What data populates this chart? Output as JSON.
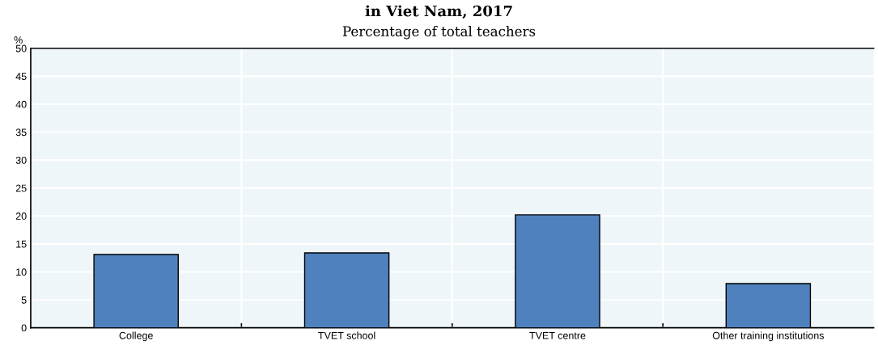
{
  "chart_data": {
    "type": "bar",
    "title": "in Viet Nam, 2017",
    "subtitle": "Percentage of total teachers",
    "ylabel": "%",
    "categories": [
      "College",
      "TVET school",
      "TVET centre",
      "Other training institutions"
    ],
    "values": [
      13.1,
      13.4,
      20.2,
      7.9
    ],
    "color": "#4e81bd",
    "ylim": [
      0,
      50
    ],
    "yticks": [
      0,
      5,
      10,
      15,
      20,
      25,
      30,
      35,
      40,
      45,
      50
    ],
    "grid": true
  }
}
